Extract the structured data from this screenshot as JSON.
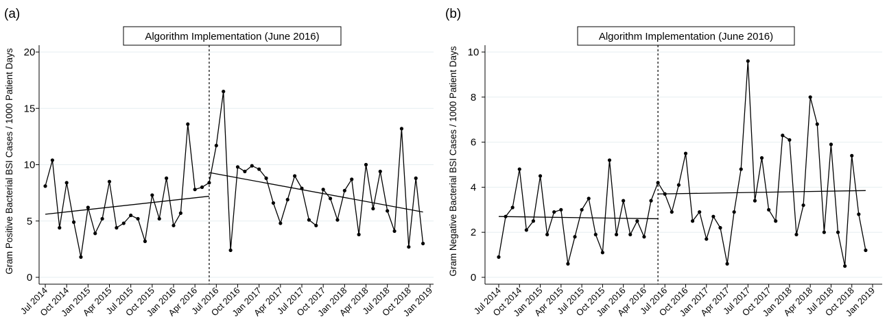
{
  "chart_data": [
    {
      "type": "line",
      "panel_label": "(a)",
      "title": "Algorithm Implementation (June 2016)",
      "xlabel": "",
      "ylabel": "Gram Positive Bacterial BSI Cases / 1000 Patient Days",
      "ylim": [
        0,
        20
      ],
      "yticks": [
        0,
        5,
        10,
        15,
        20
      ],
      "grid": true,
      "x_tick_labels": [
        "Jul 2014",
        "Oct 2014",
        "Jan 2015",
        "Apr 2015",
        "Jul 2015",
        "Oct 2015",
        "Jan 2016",
        "Apr 2016",
        "Jul 2016",
        "Oct 2016",
        "Jan 2017",
        "Apr 2017",
        "Jul 2017",
        "Oct 2017",
        "Jan 2018",
        "Apr 2018",
        "Jul 2018",
        "Oct 2018",
        "Jan 2019"
      ],
      "intervention_month": "Jun 2016",
      "x": [
        "Jul 2014",
        "Aug 2014",
        "Sep 2014",
        "Oct 2014",
        "Nov 2014",
        "Dec 2014",
        "Jan 2015",
        "Feb 2015",
        "Mar 2015",
        "Apr 2015",
        "May 2015",
        "Jun 2015",
        "Jul 2015",
        "Aug 2015",
        "Sep 2015",
        "Oct 2015",
        "Nov 2015",
        "Dec 2015",
        "Jan 2016",
        "Feb 2016",
        "Mar 2016",
        "Apr 2016",
        "May 2016",
        "Jun 2016",
        "Jul 2016",
        "Aug 2016",
        "Sep 2016",
        "Oct 2016",
        "Nov 2016",
        "Dec 2016",
        "Jan 2017",
        "Feb 2017",
        "Mar 2017",
        "Apr 2017",
        "May 2017",
        "Jun 2017",
        "Jul 2017",
        "Aug 2017",
        "Sep 2017",
        "Oct 2017",
        "Nov 2017",
        "Dec 2017",
        "Jan 2018",
        "Feb 2018",
        "Mar 2018",
        "Apr 2018",
        "May 2018",
        "Jun 2018",
        "Jul 2018",
        "Aug 2018",
        "Sep 2018",
        "Oct 2018",
        "Nov 2018",
        "Dec 2018"
      ],
      "values": [
        8.1,
        10.4,
        4.4,
        8.4,
        4.9,
        1.8,
        6.2,
        3.9,
        5.2,
        8.5,
        4.4,
        4.8,
        5.5,
        5.2,
        3.2,
        7.3,
        5.2,
        8.8,
        4.6,
        5.7,
        13.6,
        7.8,
        8.0,
        8.4,
        11.7,
        16.5,
        2.4,
        9.8,
        9.4,
        9.9,
        9.6,
        8.8,
        6.6,
        4.8,
        6.9,
        9.0,
        7.9,
        5.1,
        4.6,
        7.8,
        7.0,
        5.1,
        7.7,
        8.7,
        3.8,
        10.0,
        6.1,
        9.4,
        5.9,
        4.1,
        13.2,
        2.7,
        8.8,
        3.0
      ],
      "trend_segments": [
        {
          "x": [
            "Jul 2014",
            "Jun 2016"
          ],
          "y": [
            5.6,
            7.2
          ]
        },
        {
          "x": [
            "Jun 2016",
            "Dec 2018"
          ],
          "y": [
            9.3,
            5.8
          ]
        }
      ]
    },
    {
      "type": "line",
      "panel_label": "(b)",
      "title": "Algorithm Implementation (June 2016)",
      "xlabel": "",
      "ylabel": "Gram Negative Bacterial BSI Cases / 1000 Patient Days",
      "ylim": [
        0,
        10
      ],
      "yticks": [
        0,
        2,
        4,
        6,
        8,
        10
      ],
      "grid": true,
      "x_tick_labels": [
        "Jul 2014",
        "Oct 2014",
        "Jan 2015",
        "Apr 2015",
        "Jul 2015",
        "Oct 2015",
        "Jan 2016",
        "Apr 2016",
        "Jul 2016",
        "Oct 2016",
        "Jan 2017",
        "Apr 2017",
        "Jul 2017",
        "Oct 2017",
        "Jan 2018",
        "Apr 2018",
        "Jul 2018",
        "Oct 2018",
        "Jan 2019"
      ],
      "intervention_month": "Jun 2016",
      "x": [
        "Jul 2014",
        "Aug 2014",
        "Sep 2014",
        "Oct 2014",
        "Nov 2014",
        "Dec 2014",
        "Jan 2015",
        "Feb 2015",
        "Mar 2015",
        "Apr 2015",
        "May 2015",
        "Jun 2015",
        "Jul 2015",
        "Aug 2015",
        "Sep 2015",
        "Oct 2015",
        "Nov 2015",
        "Dec 2015",
        "Jan 2016",
        "Feb 2016",
        "Mar 2016",
        "Apr 2016",
        "May 2016",
        "Jun 2016",
        "Jul 2016",
        "Aug 2016",
        "Sep 2016",
        "Oct 2016",
        "Nov 2016",
        "Dec 2016",
        "Jan 2017",
        "Feb 2017",
        "Mar 2017",
        "Apr 2017",
        "May 2017",
        "Jun 2017",
        "Jul 2017",
        "Aug 2017",
        "Sep 2017",
        "Oct 2017",
        "Nov 2017",
        "Dec 2017",
        "Jan 2018",
        "Feb 2018",
        "Mar 2018",
        "Apr 2018",
        "May 2018",
        "Jun 2018",
        "Jul 2018",
        "Aug 2018",
        "Sep 2018",
        "Oct 2018",
        "Nov 2018",
        "Dec 2018"
      ],
      "values": [
        0.9,
        2.7,
        3.1,
        4.8,
        2.1,
        2.5,
        4.5,
        1.9,
        2.9,
        3.0,
        0.6,
        1.8,
        3.0,
        3.5,
        1.9,
        1.1,
        5.2,
        1.9,
        3.4,
        1.9,
        2.5,
        1.8,
        3.4,
        4.2,
        3.7,
        2.9,
        4.1,
        5.5,
        2.5,
        2.9,
        1.7,
        2.7,
        2.2,
        0.6,
        2.9,
        4.8,
        9.6,
        3.4,
        5.3,
        3.0,
        2.5,
        6.3,
        6.1,
        1.9,
        3.2,
        8.0,
        6.8,
        2.0,
        5.9,
        2.0,
        0.5,
        5.4,
        2.8,
        1.2
      ],
      "trend_segments": [
        {
          "x": [
            "Jul 2014",
            "Jun 2016"
          ],
          "y": [
            2.7,
            2.6
          ]
        },
        {
          "x": [
            "Jun 2016",
            "Dec 2018"
          ],
          "y": [
            3.7,
            3.85
          ]
        }
      ]
    }
  ]
}
